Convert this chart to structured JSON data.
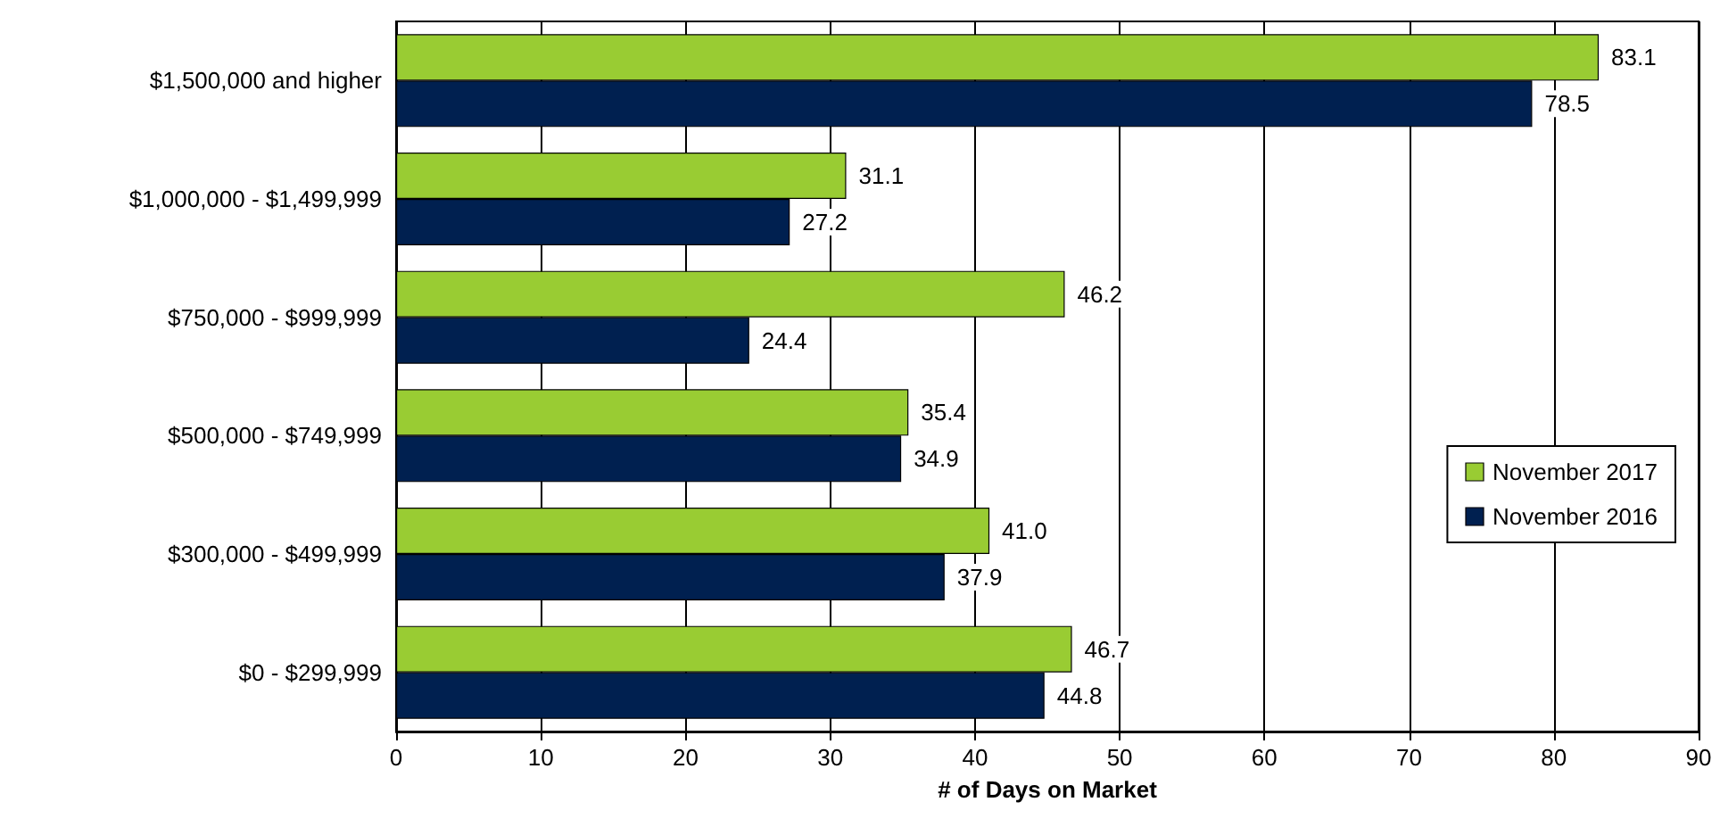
{
  "chart_data": {
    "type": "bar",
    "orientation": "horizontal",
    "xlabel": "# of Days on Market",
    "categories": [
      "$1,500,000 and higher",
      "$1,000,000 - $1,499,999",
      "$750,000 - $999,999",
      "$500,000 - $749,999",
      "$300,000 - $499,999",
      "$0 - $299,999"
    ],
    "series": [
      {
        "name": "November 2017",
        "color": "#99cc33",
        "values": [
          83.1,
          31.1,
          46.2,
          35.4,
          41.0,
          46.7
        ],
        "value_labels": [
          "83.1",
          "31.1",
          "46.2",
          "35.4",
          "41.0",
          "46.7"
        ]
      },
      {
        "name": "November 2016",
        "color": "#002050",
        "values": [
          78.5,
          27.2,
          24.4,
          34.9,
          37.9,
          44.8
        ],
        "value_labels": [
          "78.5",
          "27.2",
          "24.4",
          "34.9",
          "37.9",
          "44.8"
        ]
      }
    ],
    "xlim": [
      0,
      90
    ],
    "xticks": [
      0,
      10,
      20,
      30,
      40,
      50,
      60,
      70,
      80,
      90
    ],
    "grid": "x",
    "legend": "right"
  }
}
